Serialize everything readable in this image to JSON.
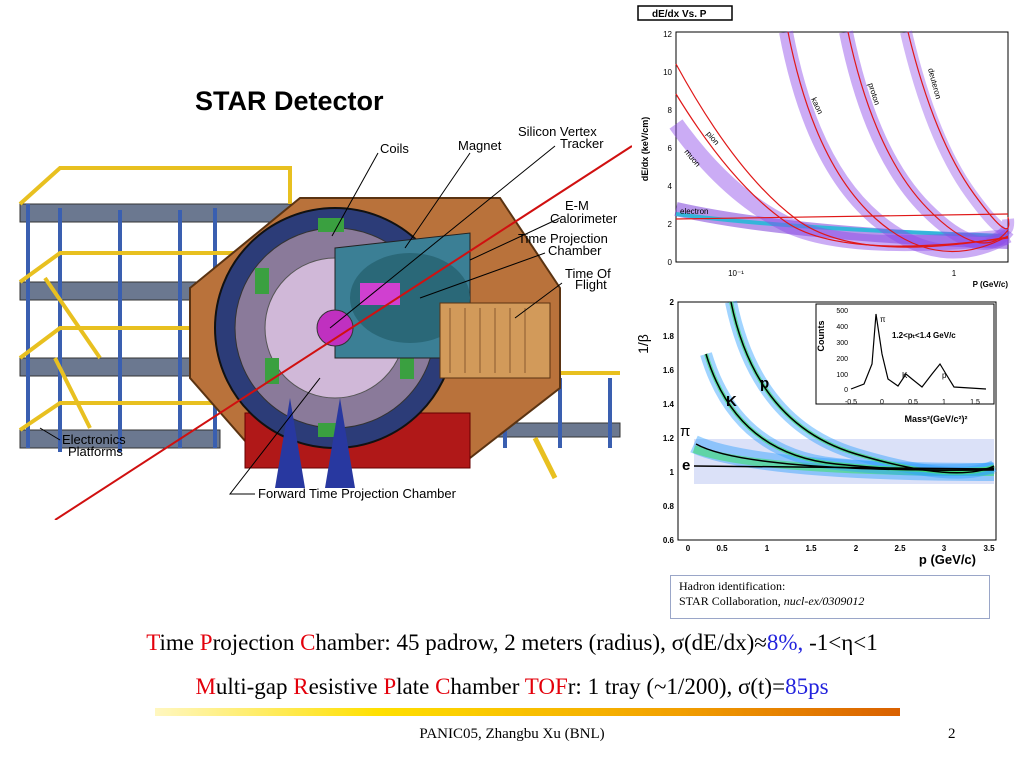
{
  "detector": {
    "title": "STAR Detector",
    "labels": {
      "coils": "Coils",
      "magnet": "Magnet",
      "svt": [
        "Silicon Vertex",
        "Tracker"
      ],
      "emc": [
        "E-M",
        "Calorimeter"
      ],
      "tpc": [
        "Time Projection",
        "Chamber"
      ],
      "tof": [
        "Time Of",
        "Flight"
      ],
      "electronics": [
        "Electronics",
        "Platforms"
      ],
      "ftpc": "Forward Time Projection Chamber"
    }
  },
  "dedx_plot": {
    "title": "dE/dx Vs. P",
    "ylabel": "dE/dx (keV/cm)",
    "xlabel": "P (GeV/c)",
    "yticks": [
      "0",
      "2",
      "4",
      "6",
      "8",
      "10",
      "12"
    ],
    "xticks": [
      "10⁻¹",
      "1"
    ],
    "bands": [
      "electron",
      "muon",
      "pion",
      "kaon",
      "proton",
      "deuteron"
    ]
  },
  "tof_plot": {
    "ylabel": "1/β",
    "xlabel": "p (GeV/c)",
    "yticks": [
      "0.6",
      "0.8",
      "1",
      "1.2",
      "1.4",
      "1.6",
      "1.8",
      "2"
    ],
    "xticks": [
      "0",
      "0.5",
      "1",
      "1.5",
      "2",
      "2.5",
      "3",
      "3.5"
    ],
    "bands": [
      "e",
      "π",
      "K",
      "p"
    ],
    "inset": {
      "ylabel": "Counts",
      "xlabel": "Mass²(GeV/c²)²",
      "annotation": "1.2<pₜ<1.4 GeV/c",
      "yticks": [
        "0",
        "100",
        "200",
        "300",
        "400",
        "500"
      ],
      "xticks": [
        "-0.5",
        "0",
        "0.5",
        "1",
        "1.5"
      ],
      "peaks": [
        "π",
        "K",
        "p"
      ]
    }
  },
  "caption": {
    "line1": "Hadron identification:",
    "line2_plain": "STAR Collaboration, ",
    "line2_italic": "nucl-ex/0309012"
  },
  "text_line1": {
    "t_cap": "T",
    "t_rest": "ime ",
    "p_cap": "P",
    "p_rest": "rojection ",
    "c_cap": "C",
    "c_rest": "hamber: 45 padrow, 2 meters (radius), σ(dE/dx)≈",
    "value": "8%,",
    "tail": " -1<η<1"
  },
  "text_line2": {
    "m_cap": "M",
    "m_rest": "ulti-gap ",
    "r_cap": "R",
    "r_rest": "esistive ",
    "p_cap": "P",
    "p_rest": "late ",
    "c_cap": "C",
    "c_rest": "hamber ",
    "tof": "TOF",
    "tof_rest": "r: 1 tray (~1/200), σ(t)=",
    "value": "85ps"
  },
  "footer": {
    "text": "PANIC05,  Zhangbu Xu (BNL)",
    "page": "2"
  },
  "colors": {
    "accent_red": "#e3000b",
    "accent_blue": "#2222dd"
  }
}
